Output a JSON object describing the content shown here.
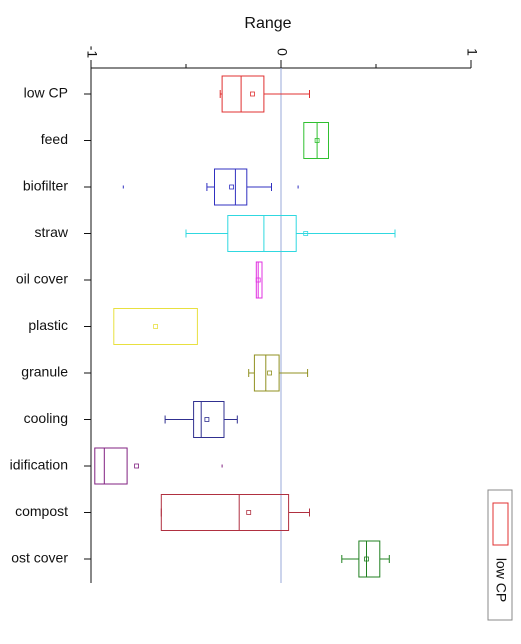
{
  "chart_data": {
    "type": "box",
    "title": "Range",
    "categories": [
      "low CP",
      "feed",
      "biofilter",
      "straw",
      "oil cover",
      "plastic",
      "granule",
      "cooling",
      "idification",
      "compost",
      "ost cover"
    ],
    "boxes": [
      {
        "color": "#e03030",
        "whislo": -0.32,
        "q1": -0.31,
        "med": -0.21,
        "q3": -0.09,
        "whishi": 0.15,
        "mean": -0.15,
        "fliers": []
      },
      {
        "color": "#30c030",
        "whislo": null,
        "q1": 0.12,
        "med": 0.19,
        "q3": 0.25,
        "whishi": null,
        "mean": 0.19,
        "fliers": []
      },
      {
        "color": "#3030c0",
        "whislo": -0.39,
        "q1": -0.35,
        "med": -0.24,
        "q3": -0.18,
        "whishi": -0.05,
        "mean": -0.26,
        "fliers": [
          -0.83,
          0.09
        ]
      },
      {
        "color": "#30d8e0",
        "whislo": -0.5,
        "q1": -0.28,
        "med": -0.09,
        "q3": 0.08,
        "whishi": 0.6,
        "mean": 0.13,
        "fliers": []
      },
      {
        "color": "#e030e0",
        "whislo": null,
        "q1": -0.13,
        "med": -0.12,
        "q3": -0.1,
        "whishi": null,
        "mean": -0.12,
        "fliers": []
      },
      {
        "color": "#e8e040",
        "whislo": null,
        "q1": -0.88,
        "med": null,
        "q3": -0.44,
        "whishi": null,
        "mean": -0.66,
        "fliers": []
      },
      {
        "color": "#909020",
        "whislo": -0.17,
        "q1": -0.14,
        "med": -0.08,
        "q3": -0.01,
        "whishi": 0.14,
        "mean": -0.06,
        "fliers": []
      },
      {
        "color": "#303090",
        "whislo": -0.61,
        "q1": -0.46,
        "med": -0.42,
        "q3": -0.3,
        "whishi": -0.23,
        "mean": -0.39,
        "fliers": []
      },
      {
        "color": "#802080",
        "whislo": null,
        "q1": -0.98,
        "med": -0.93,
        "q3": -0.81,
        "whishi": null,
        "mean": -0.76,
        "fliers": [
          -0.31
        ]
      },
      {
        "color": "#b03040",
        "whislo": -0.63,
        "q1": -0.63,
        "med": -0.22,
        "q3": 0.04,
        "whishi": 0.15,
        "mean": -0.17,
        "fliers": []
      },
      {
        "color": "#208020",
        "whislo": 0.32,
        "q1": 0.41,
        "med": 0.45,
        "q3": 0.52,
        "whishi": 0.57,
        "mean": 0.45,
        "fliers": []
      }
    ],
    "xlim": [
      -1,
      1
    ],
    "xticks": [
      -1,
      0,
      1
    ],
    "xminorticks": [
      -0.5,
      0.5
    ],
    "zero_line_color": "#9aaad8",
    "legend": "bottom-right"
  }
}
